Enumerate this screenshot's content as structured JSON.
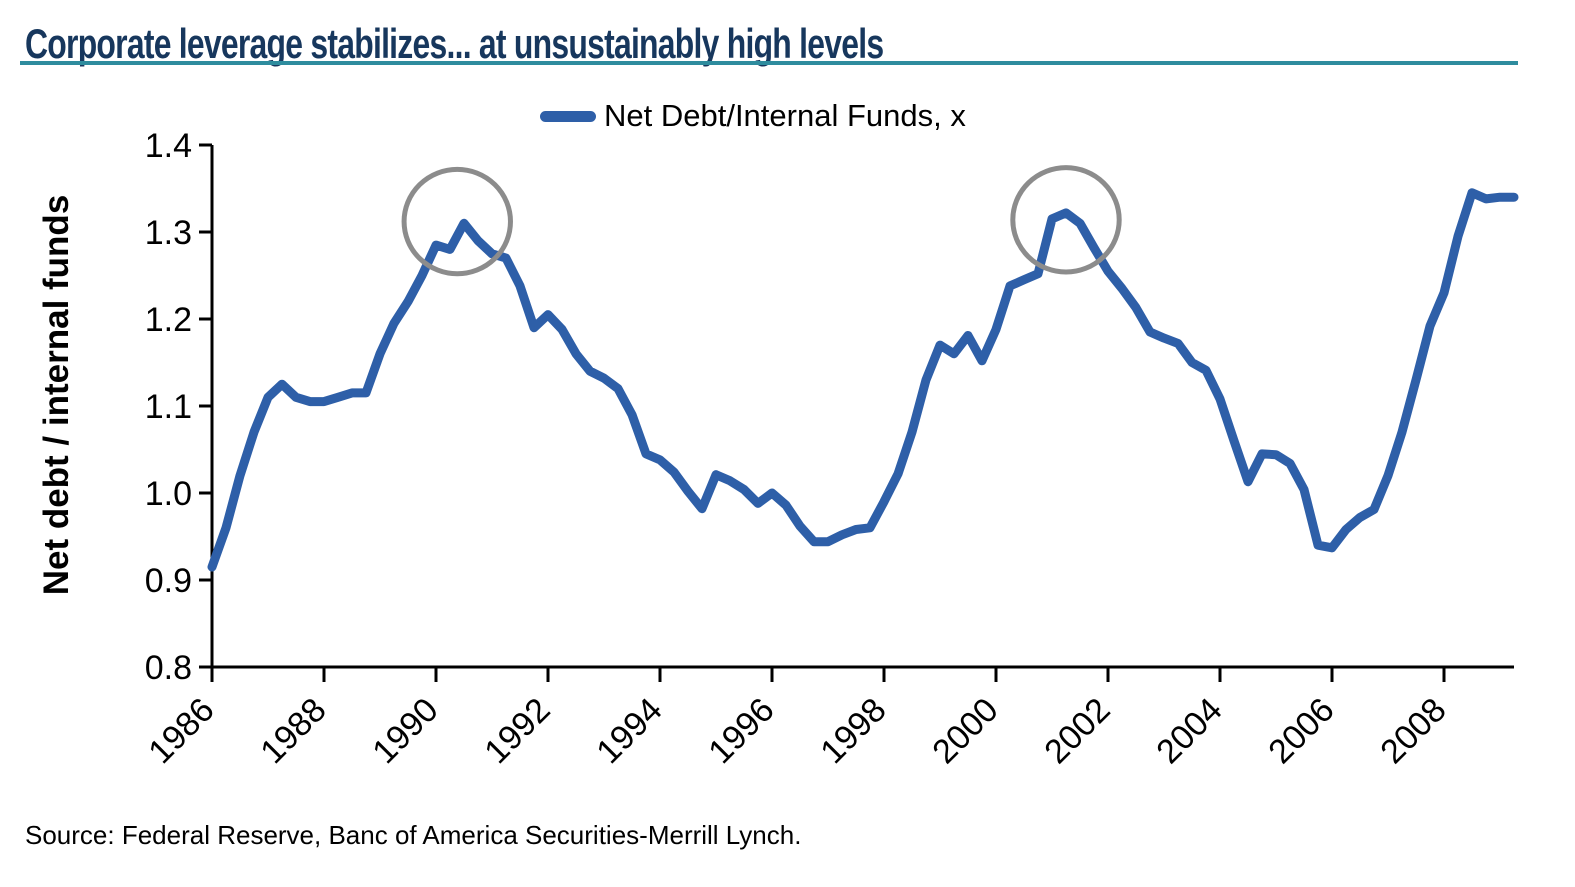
{
  "title": "Corporate leverage stabilizes... at unsustainably high levels",
  "source": "Source: Federal Reserve, Banc of America Securities-Merrill Lynch.",
  "colors": {
    "line": "#2E5FA8",
    "title": "#17375D",
    "underline": "#2E8C9E",
    "annotation_circle": "#8C8C8C",
    "axis": "#000000"
  },
  "chart_data": {
    "type": "line",
    "legend": "Net Debt/Internal Funds, x",
    "legend_position": "top-center",
    "ylabel": "Net debt / internal funds",
    "xlabel": "",
    "grid": false,
    "ylim": [
      0.8,
      1.4
    ],
    "xlim": [
      1986,
      2009.25
    ],
    "y_ticks": [
      "1.4",
      "1.3",
      "1.2",
      "1.1",
      "1.0",
      "0.9",
      "0.8"
    ],
    "x_ticks": [
      1986,
      1988,
      1990,
      1992,
      1994,
      1996,
      1998,
      2000,
      2002,
      2004,
      2006,
      2008
    ],
    "x_start": 1986.0,
    "x_step": 0.25,
    "x_unit": "year (quarterly)",
    "values": [
      0.915,
      0.96,
      1.02,
      1.07,
      1.11,
      1.125,
      1.11,
      1.105,
      1.105,
      1.11,
      1.115,
      1.115,
      1.16,
      1.195,
      1.22,
      1.25,
      1.285,
      1.28,
      1.31,
      1.29,
      1.275,
      1.27,
      1.238,
      1.19,
      1.205,
      1.188,
      1.16,
      1.14,
      1.132,
      1.12,
      1.09,
      1.045,
      1.038,
      1.024,
      1.002,
      0.982,
      1.021,
      1.014,
      1.004,
      0.988,
      1.0,
      0.986,
      0.962,
      0.944,
      0.944,
      0.952,
      0.958,
      0.96,
      0.99,
      1.022,
      1.07,
      1.13,
      1.17,
      1.16,
      1.181,
      1.152,
      1.188,
      1.238,
      1.245,
      1.252,
      1.315,
      1.322,
      1.31,
      1.282,
      1.255,
      1.235,
      1.213,
      1.185,
      1.178,
      1.172,
      1.15,
      1.141,
      1.108,
      1.06,
      1.013,
      1.045,
      1.044,
      1.034,
      1.004,
      0.94,
      0.937,
      0.958,
      0.972,
      0.981,
      1.02,
      1.07,
      1.13,
      1.192,
      1.23,
      1.295,
      1.345,
      1.338,
      1.34,
      1.34
    ],
    "annotations": [
      {
        "type": "circle",
        "x": 1990.38,
        "y": 1.312,
        "rx": 0.95,
        "ry": 0.06,
        "note": "circled peak ~1990"
      },
      {
        "type": "circle",
        "x": 2001.25,
        "y": 1.314,
        "rx": 0.95,
        "ry": 0.06,
        "note": "circled peak ~2001"
      }
    ]
  }
}
